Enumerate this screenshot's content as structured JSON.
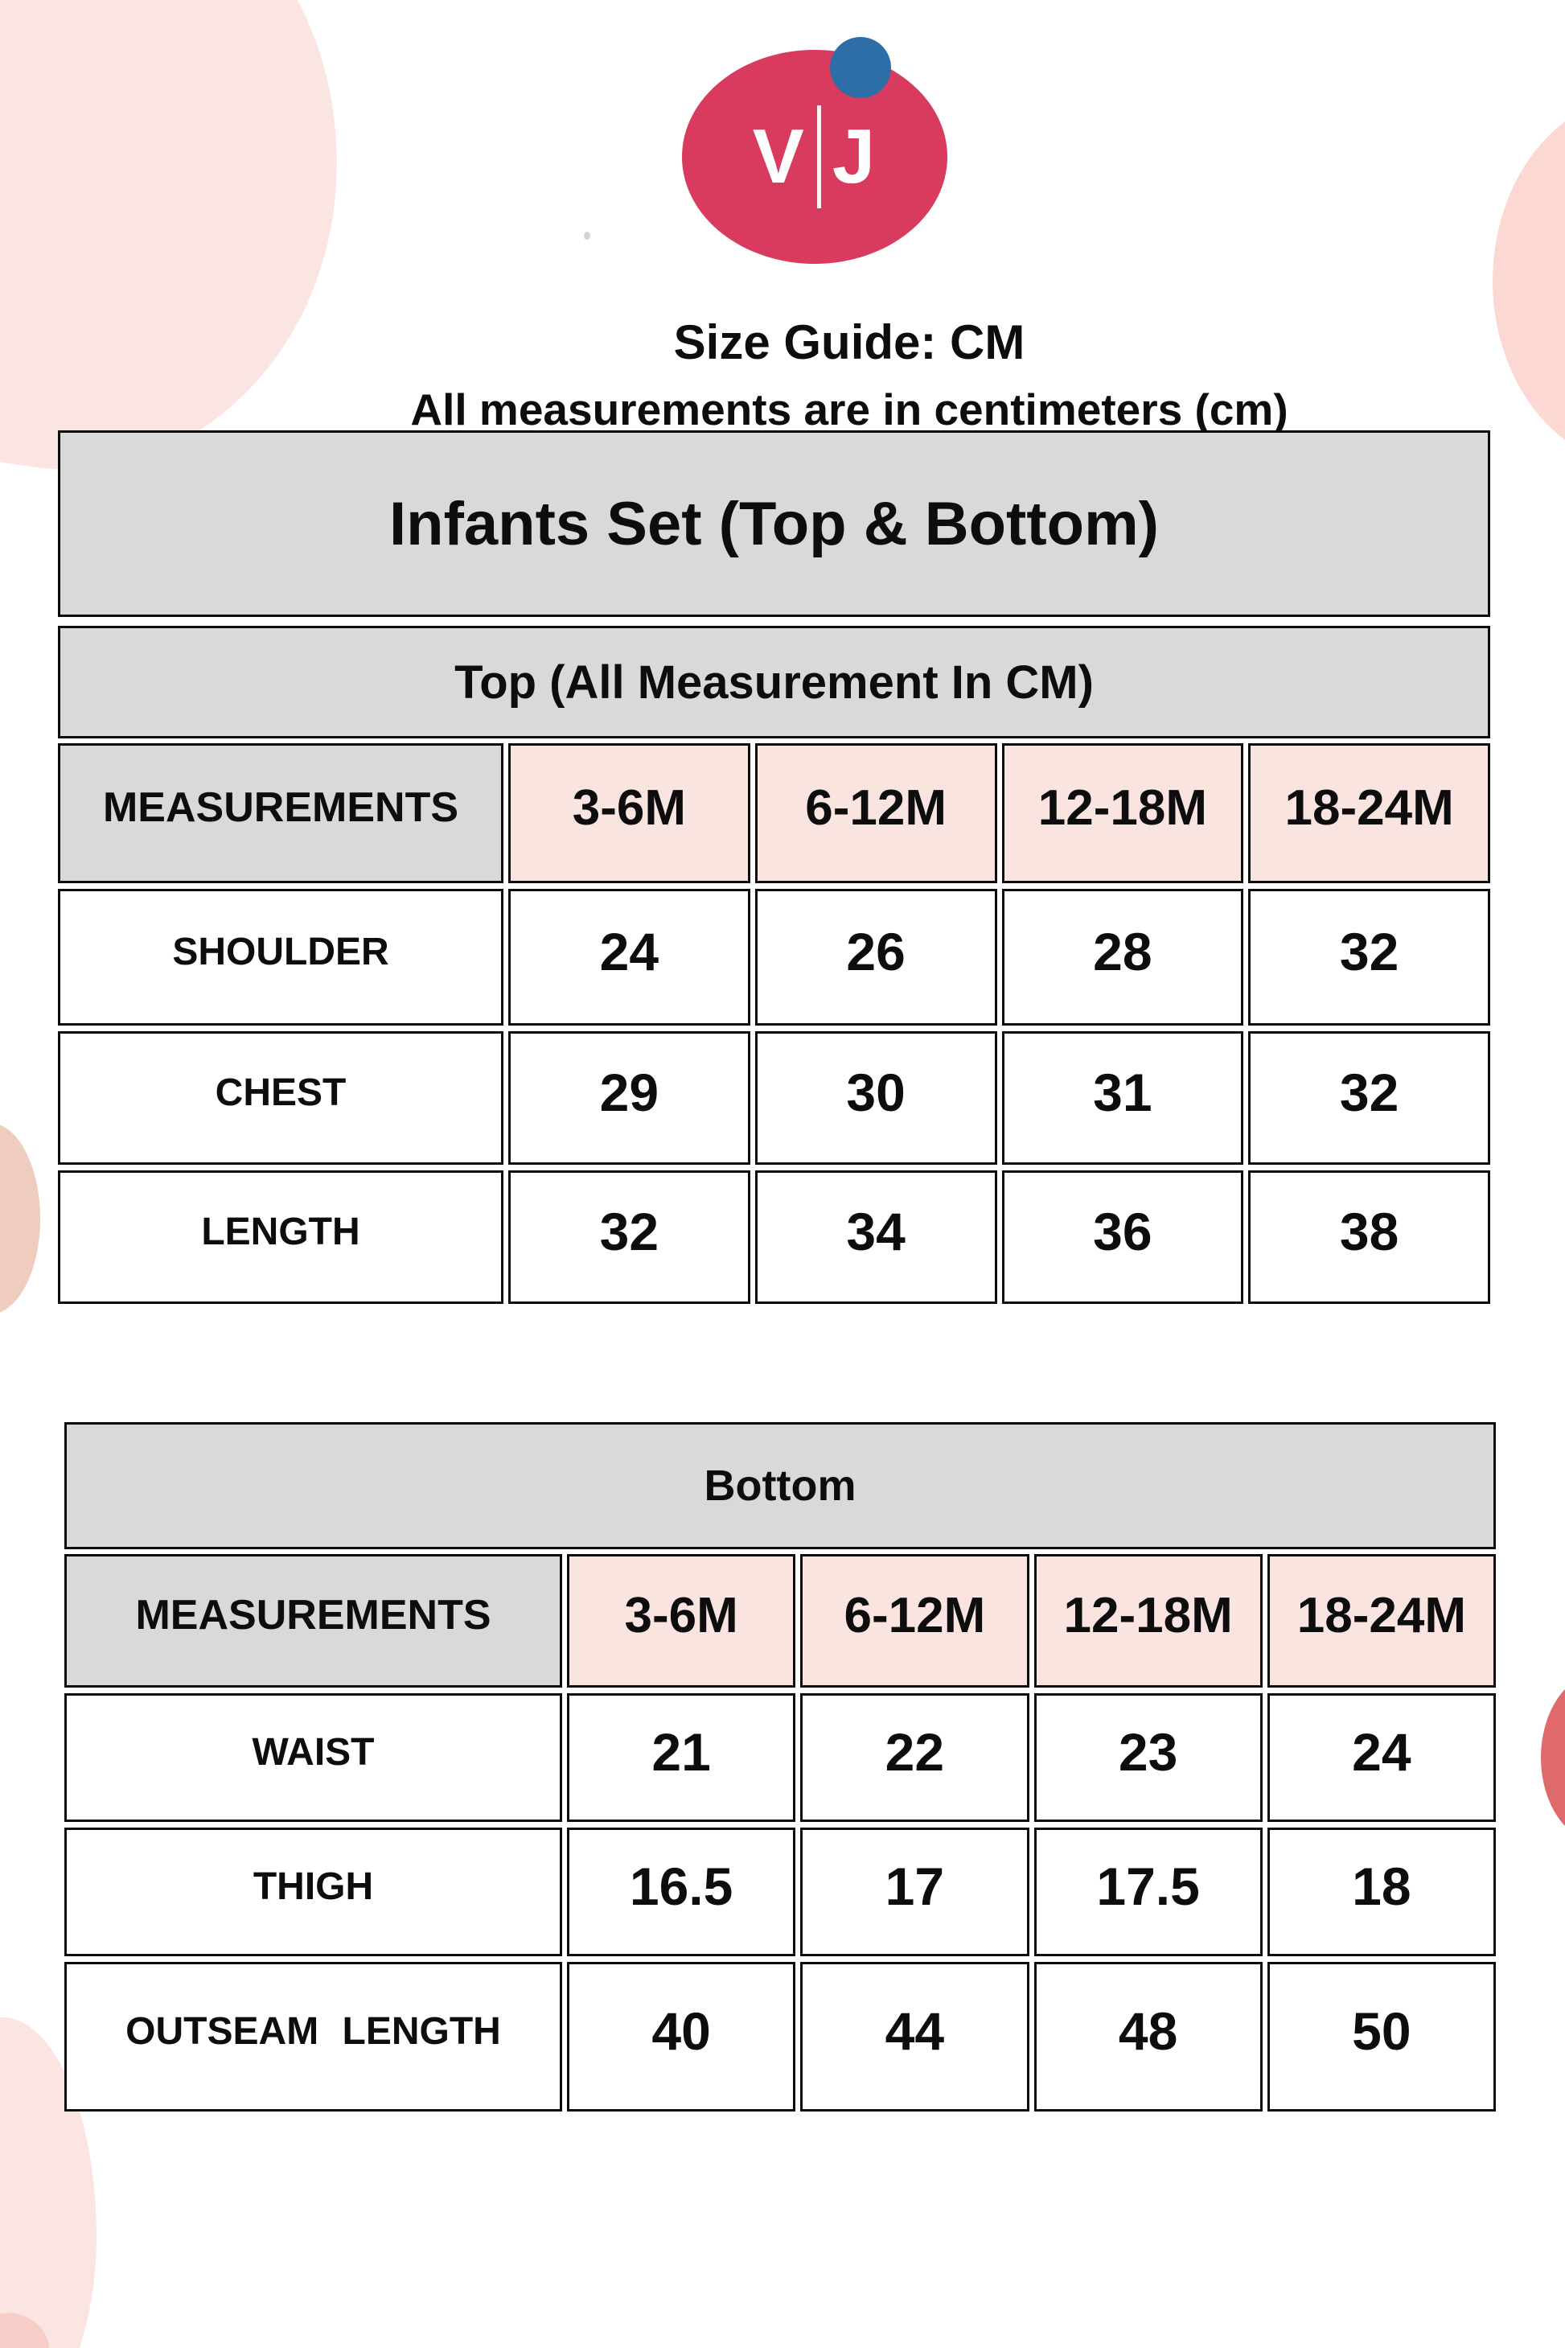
{
  "logo": {
    "left": "V",
    "separator": "|",
    "right": "J"
  },
  "header": {
    "title": "Size Guide: CM",
    "subtitle": "All measurements are in centimeters (cm)"
  },
  "top_section": {
    "title": "Infants Set (Top & Bottom)",
    "subtitle": "Top (All Measurement In CM)",
    "columns": [
      "MEASUREMENTS",
      "3-6M",
      "6-12M",
      "12-18M",
      "18-24M"
    ],
    "rows": [
      {
        "label": "SHOULDER",
        "values": [
          "24",
          "26",
          "28",
          "32"
        ]
      },
      {
        "label": "CHEST",
        "values": [
          "29",
          "30",
          "31",
          "32"
        ]
      },
      {
        "label": "LENGTH",
        "values": [
          "32",
          "34",
          "36",
          "38"
        ]
      }
    ]
  },
  "bottom_section": {
    "title": "Bottom",
    "columns": [
      "MEASUREMENTS",
      "3-6M",
      "6-12M",
      "12-18M",
      "18-24M"
    ],
    "rows": [
      {
        "label": "WAIST",
        "values": [
          "21",
          "22",
          "23",
          "24"
        ]
      },
      {
        "label": "THIGH",
        "values": [
          "16.5",
          "17",
          "17.5",
          "18"
        ]
      },
      {
        "label": "OUTSEAM LENGTH",
        "values": [
          "40",
          "44",
          "48",
          "50"
        ]
      }
    ]
  },
  "colors": {
    "logo_pink": "#d83b5d",
    "logo_blue": "#2d6ea8",
    "cell_pink": "#f9e4e0",
    "cell_gray": "#d9d9d9",
    "blob_light_pink": "#fbe5e2",
    "blob_warm_pink": "#fcd8d3",
    "blob_salmon": "#eeccbe",
    "blob_red": "#e0696b"
  }
}
